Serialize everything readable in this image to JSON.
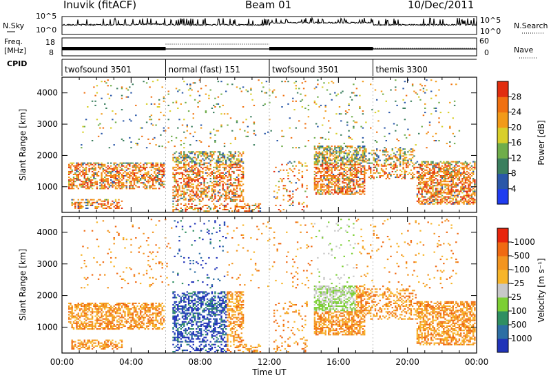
{
  "header": {
    "station": "Inuvik (fitACF)",
    "beam": "Beam 01",
    "date": "10/Dec/2011"
  },
  "noise_panel": {
    "left_label": "N.Sky",
    "right_label": "N.Search",
    "left_ticks": [
      "10^5",
      "10^0"
    ],
    "right_ticks": [
      "10^5",
      "10^0"
    ]
  },
  "freq_panel": {
    "left_label_1": "Freq.",
    "left_label_2": "[MHz]",
    "left_ticks": [
      "18",
      "8"
    ],
    "right_label": "Nave",
    "right_ticks": [
      "60",
      "0"
    ]
  },
  "cpid": {
    "label": "CPID",
    "segments": [
      {
        "name": "twofsound 3501",
        "start_h": 0,
        "end_h": 6
      },
      {
        "name": "normal (fast) 151",
        "start_h": 6,
        "end_h": 12
      },
      {
        "name": "twofsound 3501",
        "start_h": 12,
        "end_h": 18
      },
      {
        "name": "themis 3300",
        "start_h": 18,
        "end_h": 24
      }
    ]
  },
  "chart_data": [
    {
      "type": "heatmap",
      "title": "Power",
      "ylabel": "Slant Range [km]",
      "xlabel": "",
      "x_range_h": [
        0,
        24
      ],
      "ylim": [
        180,
        4500
      ],
      "y_ticks": [
        1000,
        2000,
        3000,
        4000
      ],
      "colorbar": {
        "label": "Power [dB]",
        "levels": [
          "4",
          "8",
          "12",
          "16",
          "20",
          "24",
          "28"
        ],
        "colors": [
          "#1f3cf0",
          "#2a57a8",
          "#3b7f5e",
          "#6fad4a",
          "#d8cf2a",
          "#f29a18",
          "#f07010",
          "#e12d0f"
        ]
      }
    },
    {
      "type": "heatmap",
      "title": "Velocity",
      "ylabel": "Slant Range [km]",
      "xlabel": "Time UT",
      "x_range_h": [
        0,
        24
      ],
      "ylim": [
        180,
        4500
      ],
      "y_ticks": [
        1000,
        2000,
        3000,
        4000
      ],
      "x_ticks": [
        "00:00",
        "04:00",
        "08:00",
        "12:00",
        "16:00",
        "20:00",
        "00:00"
      ],
      "colorbar": {
        "label": "Velocity [m s⁻¹]",
        "levels": [
          "1000",
          "500",
          "100",
          "25",
          "-25",
          "-100",
          "-500",
          "-1000"
        ],
        "colors": [
          "#2033b8",
          "#2d6fa4",
          "#2f8f62",
          "#7ccf34",
          "#c8c8c8",
          "#f7b52a",
          "#f39520",
          "#f06a12",
          "#e8240c"
        ]
      }
    }
  ]
}
